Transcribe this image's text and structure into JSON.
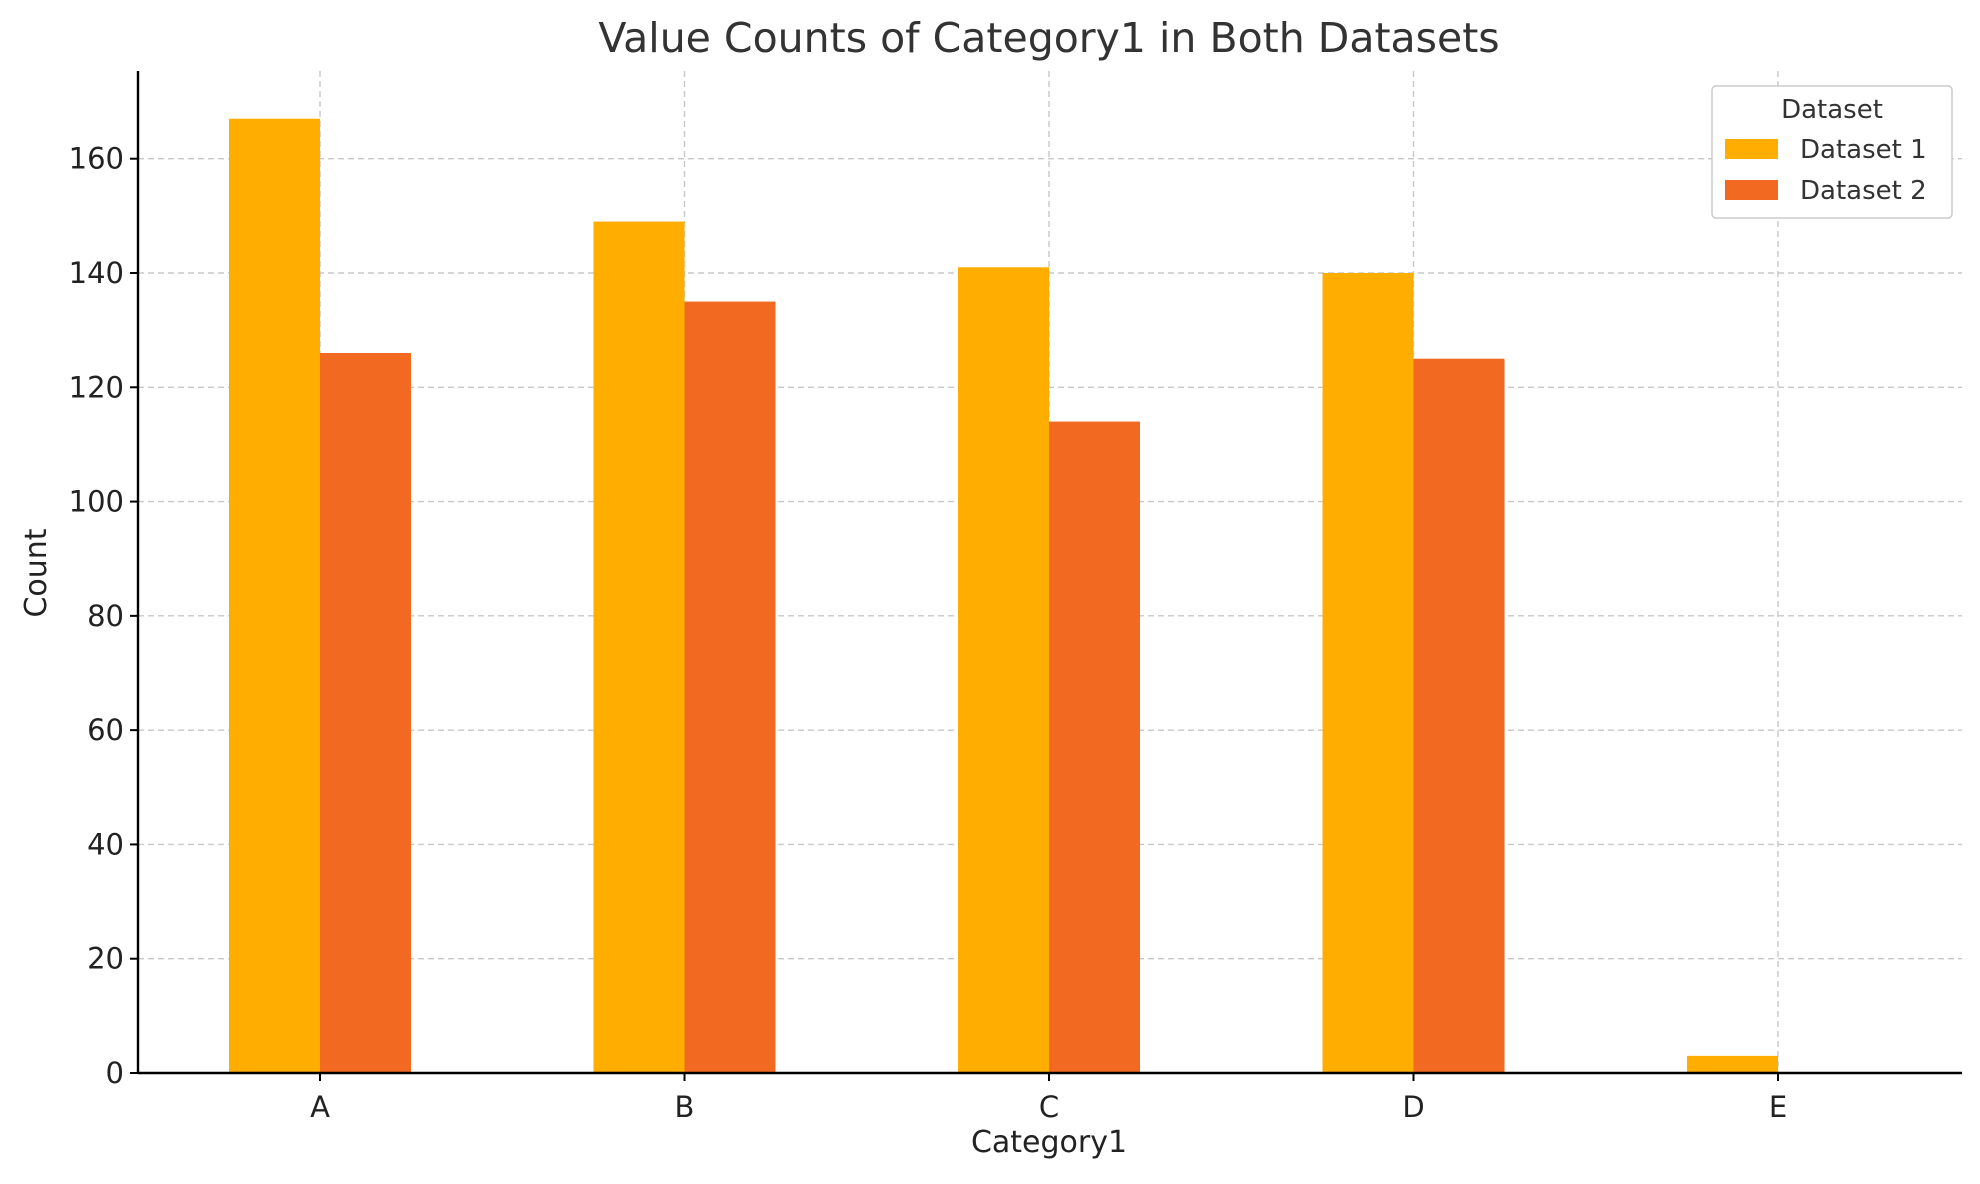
{
  "chart_data": {
    "type": "bar",
    "title": "Value Counts of Category1 in Both Datasets",
    "xlabel": "Category1",
    "ylabel": "Count",
    "categories": [
      "A",
      "B",
      "C",
      "D",
      "E"
    ],
    "series": [
      {
        "name": "Dataset 1",
        "color": "#FFAE00",
        "values": [
          167,
          149,
          141,
          140,
          3
        ]
      },
      {
        "name": "Dataset 2",
        "color": "#F26A21",
        "values": [
          126,
          135,
          114,
          125,
          0
        ]
      }
    ],
    "ylim": [
      0,
      175.35
    ],
    "yticks": [
      0,
      20,
      40,
      60,
      80,
      100,
      120,
      140,
      160
    ],
    "grid": true,
    "legend": {
      "title": "Dataset",
      "placement": "top-right"
    }
  }
}
